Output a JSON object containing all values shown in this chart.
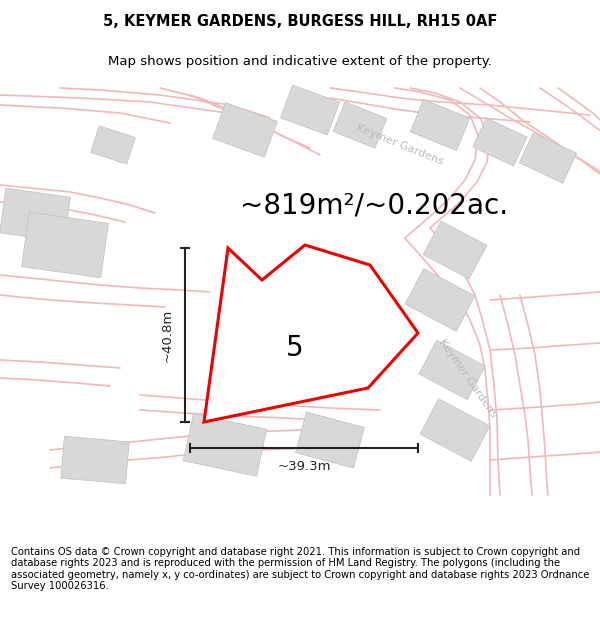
{
  "title": "5, KEYMER GARDENS, BURGESS HILL, RH15 0AF",
  "subtitle": "Map shows position and indicative extent of the property.",
  "area_text": "~819m²/~0.202ac.",
  "dim_h": "~40.8m",
  "dim_w": "~39.3m",
  "plot_label": "5",
  "street_label_1": "Keymer Gardens",
  "street_label_2": "Keymer Gardens",
  "footer": "Contains OS data © Crown copyright and database right 2021. This information is subject to Crown copyright and database rights 2023 and is reproduced with the permission of HM Land Registry. The polygons (including the associated geometry, namely x, y co-ordinates) are subject to Crown copyright and database rights 2023 Ordnance Survey 100026316.",
  "bg_color": "#ffffff",
  "map_bg": "#fdf7f7",
  "road_color": "#f0b8b8",
  "building_color": "#d8d8d8",
  "building_edge": "#c0c0c0",
  "property_color": "#ee0000",
  "dim_color": "#222222",
  "title_fontsize": 10.5,
  "subtitle_fontsize": 9.5,
  "area_fontsize": 20,
  "footer_fontsize": 7.2,
  "street_label_color": "#bbbbbb",
  "plot_label_fontsize": 20
}
